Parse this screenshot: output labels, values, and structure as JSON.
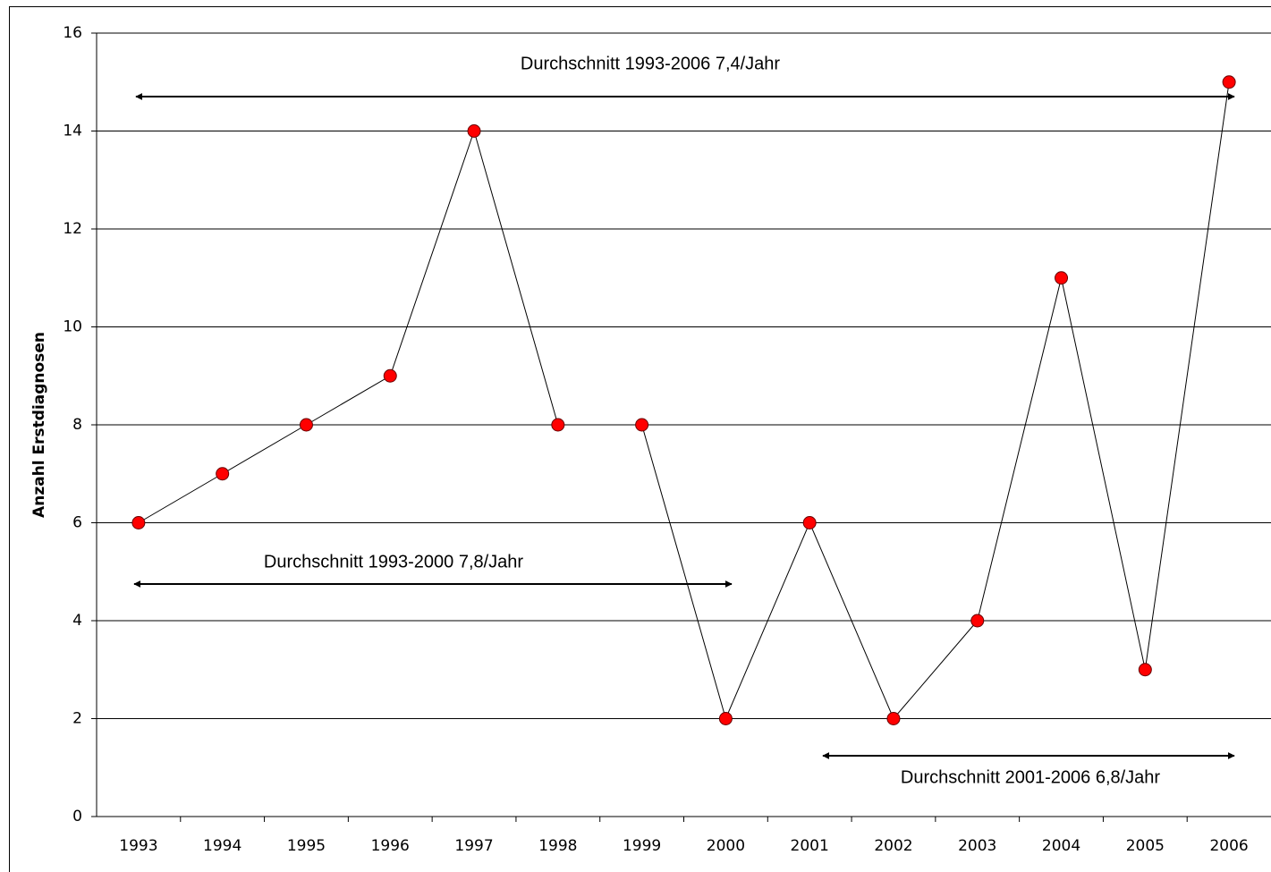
{
  "chart_data": {
    "type": "line",
    "y_label": "Anzahl Erstdiagnosen",
    "categories": [
      "1993",
      "1994",
      "1995",
      "1996",
      "1997",
      "1998",
      "1999",
      "2000",
      "2001",
      "2002",
      "2003",
      "2004",
      "2005",
      "2006"
    ],
    "series": [
      {
        "color": "#ff0000",
        "values": [
          6,
          7,
          8,
          9,
          14,
          8,
          8,
          2,
          6,
          2,
          4,
          11,
          3,
          15
        ]
      }
    ],
    "ylim": [
      0,
      16
    ],
    "yticks": [
      0,
      2,
      4,
      6,
      8,
      10,
      12,
      14,
      16
    ],
    "grid": true,
    "annotations": [
      "Durchschnitt 1993-2006 7,4/Jahr",
      "Durchschnitt 1993-2000 7,8/Jahr",
      "Durchschnitt 2001-2006 6,8/Jahr"
    ]
  }
}
